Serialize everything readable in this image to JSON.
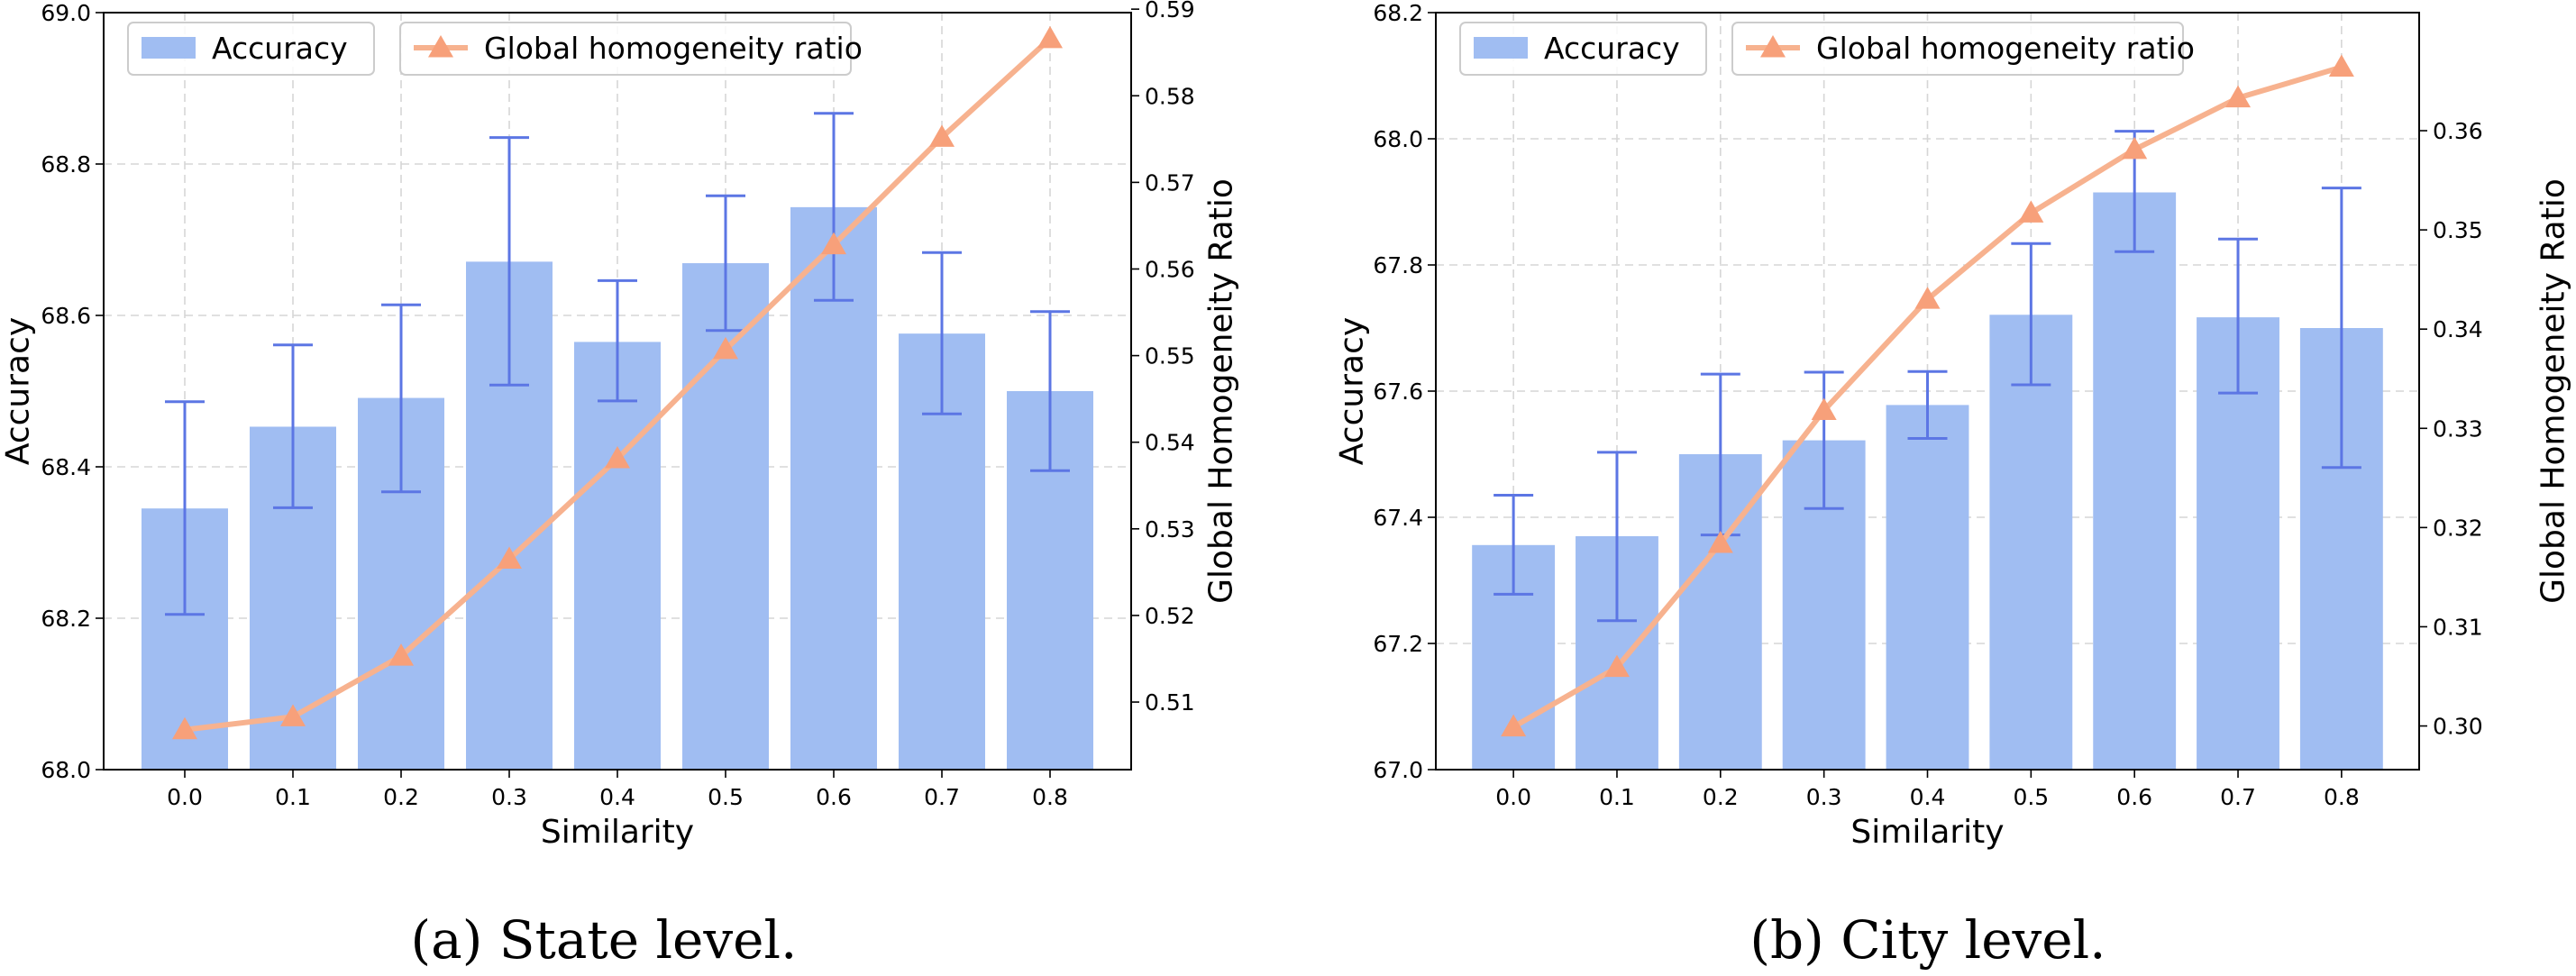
{
  "colors": {
    "bar": "#a0bdf2",
    "errorbar": "#5c76e4",
    "line": "#f7b28f",
    "marker": "#f7a07a",
    "grid": "#d6d6d6"
  },
  "chart_data": [
    {
      "type": "bar+line",
      "caption": "(a)  State level.",
      "xlabel": "Similarity",
      "ylabel": "Accuracy",
      "y2label": "Global Homogeneity Ratio",
      "categories": [
        "0.0",
        "0.1",
        "0.2",
        "0.3",
        "0.4",
        "0.5",
        "0.6",
        "0.7",
        "0.8"
      ],
      "ylim": [
        68.0,
        69.0
      ],
      "yticks": [
        68.0,
        68.2,
        68.4,
        68.6,
        68.8,
        69.0
      ],
      "ytick_labels": [
        "68.0",
        "68.2",
        "68.4",
        "68.6",
        "68.8",
        "69.0"
      ],
      "y2lim": [
        0.5022,
        0.5896
      ],
      "y2ticks": [
        0.51,
        0.52,
        0.53,
        0.54,
        0.55,
        0.56,
        0.57,
        0.58,
        0.59
      ],
      "y2tick_labels": [
        "0.51",
        "0.52",
        "0.53",
        "0.54",
        "0.55",
        "0.56",
        "0.57",
        "0.58",
        "0.59"
      ],
      "legend": {
        "bar_label": "Accuracy",
        "line_label": "Global homogeneity ratio",
        "position": "top"
      },
      "grid": true,
      "bars": {
        "name": "Accuracy",
        "values": [
          68.345,
          68.453,
          68.491,
          68.671,
          68.565,
          68.669,
          68.743,
          68.576,
          68.5
        ],
        "err_low": [
          68.205,
          68.346,
          68.367,
          68.508,
          68.487,
          68.58,
          68.62,
          68.47,
          68.395
        ],
        "err_high": [
          68.486,
          68.561,
          68.614,
          68.835,
          68.646,
          68.758,
          68.867,
          68.683,
          68.605
        ]
      },
      "line": {
        "name": "Global homogeneity ratio",
        "values": [
          0.5068,
          0.5083,
          0.5153,
          0.5265,
          0.5381,
          0.5507,
          0.5628,
          0.5752,
          0.5866
        ]
      }
    },
    {
      "type": "bar+line",
      "caption": "(b)  City level.",
      "xlabel": "Similarity",
      "ylabel": "Accuracy",
      "y2label": "Global Homogeneity Ratio",
      "categories": [
        "0.0",
        "0.1",
        "0.2",
        "0.3",
        "0.4",
        "0.5",
        "0.6",
        "0.7",
        "0.8"
      ],
      "ylim": [
        67.0,
        68.2
      ],
      "yticks": [
        67.0,
        67.2,
        67.4,
        67.6,
        67.8,
        68.0,
        68.2
      ],
      "ytick_labels": [
        "67.0",
        "67.2",
        "67.4",
        "67.6",
        "67.8",
        "68.0",
        "68.2"
      ],
      "y2lim": [
        0.2956,
        0.3719
      ],
      "y2ticks": [
        0.3,
        0.31,
        0.32,
        0.33,
        0.34,
        0.35,
        0.36
      ],
      "y2tick_labels": [
        "0.30",
        "0.31",
        "0.32",
        "0.33",
        "0.34",
        "0.35",
        "0.36"
      ],
      "legend": {
        "bar_label": "Accuracy",
        "line_label": "Global homogeneity ratio",
        "position": "top"
      },
      "grid": true,
      "bars": {
        "name": "Accuracy",
        "values": [
          67.356,
          67.37,
          67.5,
          67.522,
          67.578,
          67.721,
          67.915,
          67.717,
          67.7
        ],
        "err_low": [
          67.278,
          67.236,
          67.372,
          67.414,
          67.525,
          67.61,
          67.821,
          67.597,
          67.479
        ],
        "err_high": [
          67.435,
          67.503,
          67.627,
          67.63,
          67.631,
          67.834,
          68.012,
          67.841,
          67.922
        ]
      },
      "line": {
        "name": "Global homogeneity ratio",
        "values": [
          0.2999,
          0.3059,
          0.3184,
          0.3318,
          0.343,
          0.3517,
          0.3581,
          0.3633,
          0.3664
        ]
      }
    }
  ]
}
